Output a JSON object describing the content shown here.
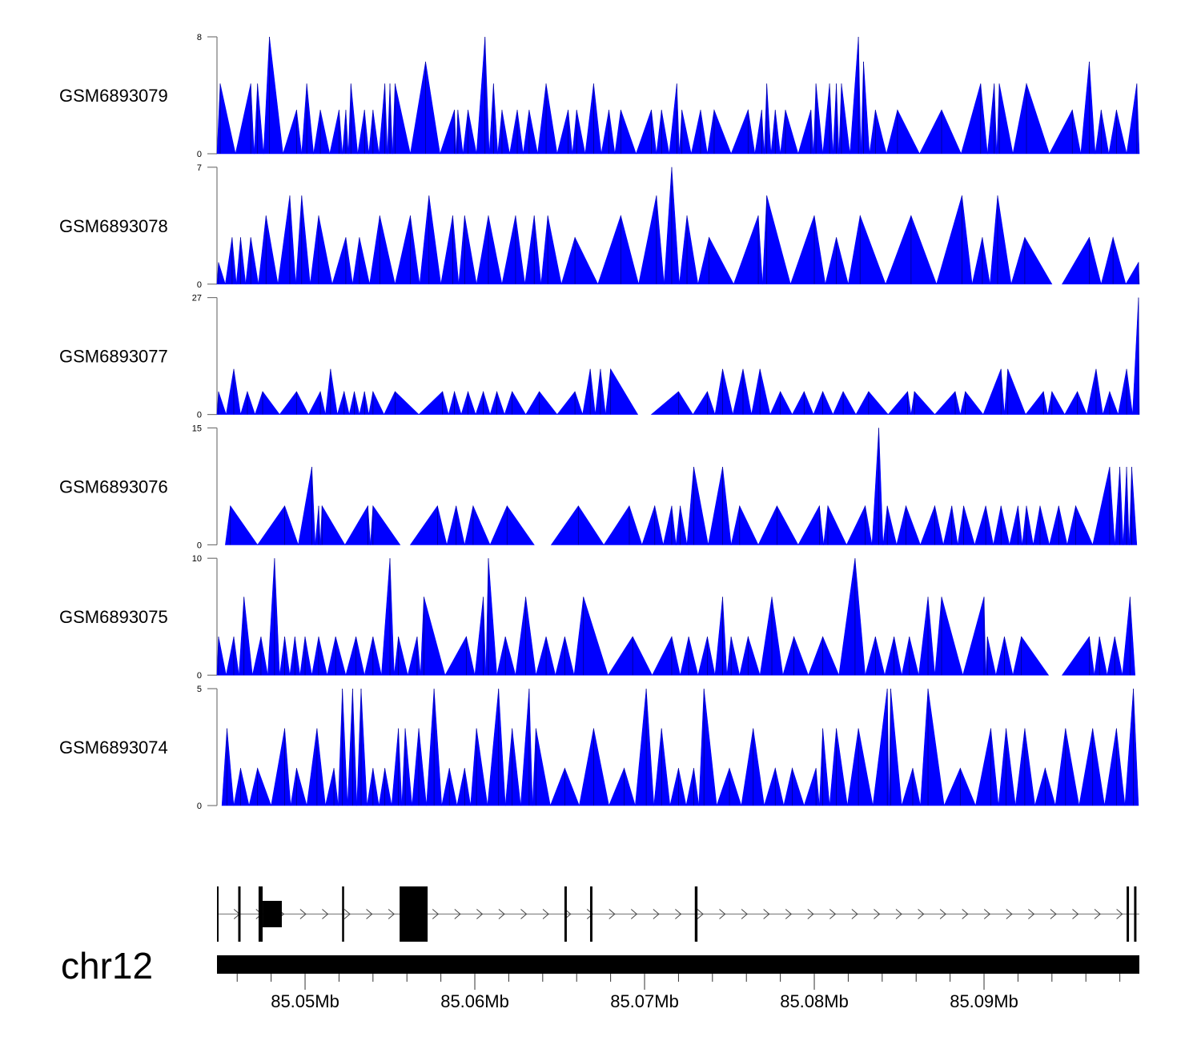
{
  "chart_data": {
    "type": "area",
    "x_unit": "kb offset from chr12:85,000,000",
    "xlim": [
      44.81,
      99.15
    ],
    "fill_color": "#0000FF",
    "tracks": [
      {
        "name": "GSM6893079",
        "ylim": [
          0,
          8
        ],
        "ymax_label": "8",
        "ymin_label": "0",
        "peaks": [
          [
            45.0,
            4.8
          ],
          [
            46.8,
            4.8
          ],
          [
            47.2,
            4.8
          ],
          [
            47.9,
            8
          ],
          [
            49.5,
            3
          ],
          [
            50.1,
            4.8
          ],
          [
            50.9,
            3
          ],
          [
            52.0,
            3
          ],
          [
            52.4,
            3
          ],
          [
            52.7,
            4.8
          ],
          [
            53.5,
            3
          ],
          [
            54.0,
            3
          ],
          [
            54.7,
            4.8
          ],
          [
            55.0,
            4.8
          ],
          [
            55.3,
            4.8
          ],
          [
            57.1,
            6.3
          ],
          [
            58.8,
            3
          ],
          [
            59.0,
            3
          ],
          [
            59.6,
            3
          ],
          [
            60.6,
            8
          ],
          [
            61.1,
            4.8
          ],
          [
            61.6,
            3
          ],
          [
            62.5,
            3
          ],
          [
            63.2,
            3
          ],
          [
            64.2,
            4.8
          ],
          [
            65.5,
            3
          ],
          [
            66.0,
            3
          ],
          [
            67.0,
            4.8
          ],
          [
            67.9,
            3
          ],
          [
            68.6,
            3
          ],
          [
            70.4,
            3
          ],
          [
            71.0,
            3
          ],
          [
            71.9,
            4.8
          ],
          [
            72.2,
            3
          ],
          [
            73.3,
            3
          ],
          [
            74.1,
            3
          ],
          [
            76.1,
            3
          ],
          [
            76.9,
            3
          ],
          [
            77.2,
            4.8
          ],
          [
            77.7,
            3
          ],
          [
            78.3,
            3
          ],
          [
            79.8,
            3
          ],
          [
            80.1,
            4.8
          ],
          [
            80.9,
            4.8
          ],
          [
            81.3,
            4.8
          ],
          [
            81.6,
            4.8
          ],
          [
            82.6,
            8
          ],
          [
            82.9,
            6.3
          ],
          [
            83.6,
            3
          ],
          [
            84.9,
            3
          ],
          [
            87.5,
            3
          ],
          [
            89.8,
            4.8
          ],
          [
            90.6,
            4.8
          ],
          [
            90.9,
            4.8
          ],
          [
            92.5,
            4.8
          ],
          [
            95.2,
            3
          ],
          [
            96.2,
            6.3
          ],
          [
            96.9,
            3
          ],
          [
            97.8,
            3
          ],
          [
            99.0,
            4.8
          ]
        ]
      },
      {
        "name": "GSM6893078",
        "ylim": [
          0,
          7
        ],
        "ymax_label": "7",
        "ymin_label": "0",
        "peaks": [
          [
            44.9,
            1.3
          ],
          [
            45.7,
            2.8
          ],
          [
            46.2,
            2.8
          ],
          [
            46.8,
            2.8
          ],
          [
            47.7,
            4.1
          ],
          [
            49.1,
            5.3
          ],
          [
            49.8,
            5.3
          ],
          [
            50.8,
            4.1
          ],
          [
            52.4,
            2.8
          ],
          [
            53.2,
            2.8
          ],
          [
            54.4,
            4.1
          ],
          [
            56.2,
            4.1
          ],
          [
            57.3,
            5.3
          ],
          [
            58.7,
            4.1
          ],
          [
            59.4,
            4.1
          ],
          [
            60.8,
            4.1
          ],
          [
            62.4,
            4.1
          ],
          [
            63.5,
            4.1
          ],
          [
            64.3,
            4.1
          ],
          [
            65.9,
            2.8
          ],
          [
            68.6,
            4.1
          ],
          [
            70.7,
            5.3
          ],
          [
            71.6,
            7
          ],
          [
            72.5,
            4.1
          ],
          [
            73.8,
            2.8
          ],
          [
            76.7,
            4.1
          ],
          [
            77.2,
            5.3
          ],
          [
            80.0,
            4.1
          ],
          [
            81.3,
            2.8
          ],
          [
            82.7,
            4.1
          ],
          [
            85.7,
            4.1
          ],
          [
            88.7,
            5.3
          ],
          [
            89.9,
            2.8
          ],
          [
            90.8,
            5.3
          ],
          [
            92.4,
            2.8
          ],
          [
            96.2,
            2.8
          ],
          [
            97.6,
            2.8
          ],
          [
            99.1,
            1.3
          ]
        ]
      },
      {
        "name": "GSM6893077",
        "ylim": [
          0,
          27
        ],
        "ymax_label": "27",
        "ymin_label": "0",
        "peaks": [
          [
            44.9,
            5.3
          ],
          [
            45.8,
            10.5
          ],
          [
            46.6,
            5.3
          ],
          [
            47.5,
            5.3
          ],
          [
            49.5,
            5.3
          ],
          [
            50.9,
            5.3
          ],
          [
            51.5,
            10.5
          ],
          [
            52.3,
            5.3
          ],
          [
            52.9,
            5.3
          ],
          [
            53.5,
            5.3
          ],
          [
            54.0,
            5.3
          ],
          [
            55.3,
            5.3
          ],
          [
            58.1,
            5.3
          ],
          [
            58.8,
            5.3
          ],
          [
            59.6,
            5.3
          ],
          [
            60.5,
            5.3
          ],
          [
            61.3,
            5.3
          ],
          [
            62.2,
            5.3
          ],
          [
            63.8,
            5.3
          ],
          [
            65.9,
            5.3
          ],
          [
            66.8,
            10.5
          ],
          [
            67.4,
            10.5
          ],
          [
            68.0,
            10.5
          ],
          [
            72.0,
            5.3
          ],
          [
            73.7,
            5.3
          ],
          [
            74.6,
            10.5
          ],
          [
            75.8,
            10.5
          ],
          [
            76.8,
            10.5
          ],
          [
            78.0,
            5.3
          ],
          [
            79.4,
            5.3
          ],
          [
            80.5,
            5.3
          ],
          [
            81.7,
            5.3
          ],
          [
            83.2,
            5.3
          ],
          [
            85.5,
            5.3
          ],
          [
            85.9,
            5.3
          ],
          [
            88.3,
            5.3
          ],
          [
            88.9,
            5.3
          ],
          [
            91.0,
            10.5
          ],
          [
            91.4,
            10.5
          ],
          [
            93.5,
            5.3
          ],
          [
            94.0,
            5.3
          ],
          [
            95.5,
            5.3
          ],
          [
            96.6,
            10.5
          ],
          [
            97.4,
            5.3
          ],
          [
            98.4,
            10.5
          ],
          [
            99.1,
            27
          ]
        ]
      },
      {
        "name": "GSM6893076",
        "ylim": [
          0,
          15
        ],
        "ymax_label": "15",
        "ymin_label": "0",
        "peaks": [
          [
            45.6,
            5
          ],
          [
            48.8,
            5
          ],
          [
            50.4,
            10
          ],
          [
            50.8,
            5
          ],
          [
            51.0,
            5
          ],
          [
            53.7,
            5
          ],
          [
            54.0,
            5
          ],
          [
            57.8,
            5
          ],
          [
            58.9,
            5
          ],
          [
            59.9,
            5
          ],
          [
            61.9,
            5
          ],
          [
            66.1,
            5
          ],
          [
            69.1,
            5
          ],
          [
            70.6,
            5
          ],
          [
            71.6,
            5
          ],
          [
            72.1,
            5
          ],
          [
            72.9,
            10
          ],
          [
            74.6,
            10
          ],
          [
            75.6,
            5
          ],
          [
            77.8,
            5
          ],
          [
            80.3,
            5
          ],
          [
            80.8,
            5
          ],
          [
            83.0,
            5
          ],
          [
            83.8,
            15
          ],
          [
            84.3,
            5
          ],
          [
            85.4,
            5
          ],
          [
            87.1,
            5
          ],
          [
            88.1,
            5
          ],
          [
            88.8,
            5
          ],
          [
            90.1,
            5
          ],
          [
            91.0,
            5
          ],
          [
            92.0,
            5
          ],
          [
            92.5,
            5
          ],
          [
            93.3,
            5
          ],
          [
            94.4,
            5
          ],
          [
            95.4,
            5
          ],
          [
            97.4,
            10
          ],
          [
            98.0,
            10
          ],
          [
            98.4,
            10
          ],
          [
            98.7,
            10
          ]
        ]
      },
      {
        "name": "GSM6893075",
        "ylim": [
          0,
          10
        ],
        "ymax_label": "10",
        "ymin_label": "0",
        "peaks": [
          [
            44.9,
            3.3
          ],
          [
            45.8,
            3.3
          ],
          [
            46.4,
            6.7
          ],
          [
            47.4,
            3.3
          ],
          [
            48.2,
            10
          ],
          [
            48.8,
            3.3
          ],
          [
            49.4,
            3.3
          ],
          [
            50.0,
            3.3
          ],
          [
            50.8,
            3.3
          ],
          [
            51.8,
            3.3
          ],
          [
            53.0,
            3.3
          ],
          [
            54.0,
            3.3
          ],
          [
            55.0,
            10
          ],
          [
            55.5,
            3.3
          ],
          [
            56.6,
            3.3
          ],
          [
            57.0,
            6.7
          ],
          [
            59.5,
            3.3
          ],
          [
            60.5,
            6.7
          ],
          [
            60.8,
            10
          ],
          [
            61.8,
            3.3
          ],
          [
            63.0,
            6.7
          ],
          [
            64.2,
            3.3
          ],
          [
            65.3,
            3.3
          ],
          [
            66.4,
            6.7
          ],
          [
            69.3,
            3.3
          ],
          [
            71.6,
            3.3
          ],
          [
            72.6,
            3.3
          ],
          [
            73.7,
            3.3
          ],
          [
            74.6,
            6.7
          ],
          [
            75.1,
            3.3
          ],
          [
            76.1,
            3.3
          ],
          [
            77.5,
            6.7
          ],
          [
            78.8,
            3.3
          ],
          [
            80.5,
            3.3
          ],
          [
            82.4,
            10
          ],
          [
            83.6,
            3.3
          ],
          [
            84.7,
            3.3
          ],
          [
            85.6,
            3.3
          ],
          [
            86.7,
            6.7
          ],
          [
            87.5,
            6.7
          ],
          [
            90.0,
            6.7
          ],
          [
            90.2,
            3.3
          ],
          [
            91.2,
            3.3
          ],
          [
            92.2,
            3.3
          ],
          [
            96.2,
            3.3
          ],
          [
            96.8,
            3.3
          ],
          [
            97.7,
            3.3
          ],
          [
            98.6,
            6.7
          ]
        ]
      },
      {
        "name": "GSM6893074",
        "ylim": [
          0,
          5
        ],
        "ymax_label": "5",
        "ymin_label": "0",
        "peaks": [
          [
            45.4,
            3.3
          ],
          [
            46.2,
            1.6
          ],
          [
            47.2,
            1.6
          ],
          [
            48.8,
            3.3
          ],
          [
            49.5,
            1.6
          ],
          [
            50.7,
            3.3
          ],
          [
            51.7,
            1.6
          ],
          [
            52.2,
            5
          ],
          [
            52.8,
            5
          ],
          [
            53.3,
            5
          ],
          [
            54.0,
            1.6
          ],
          [
            54.7,
            1.6
          ],
          [
            55.5,
            3.3
          ],
          [
            55.9,
            3.3
          ],
          [
            56.7,
            3.3
          ],
          [
            57.6,
            5
          ],
          [
            58.5,
            1.6
          ],
          [
            59.4,
            1.6
          ],
          [
            60.1,
            3.3
          ],
          [
            61.4,
            5
          ],
          [
            62.2,
            3.3
          ],
          [
            63.2,
            5
          ],
          [
            63.6,
            3.3
          ],
          [
            65.3,
            1.6
          ],
          [
            67.0,
            3.3
          ],
          [
            68.8,
            1.6
          ],
          [
            70.1,
            5
          ],
          [
            71.0,
            3.3
          ],
          [
            72.0,
            1.6
          ],
          [
            72.9,
            1.6
          ],
          [
            73.5,
            5
          ],
          [
            75.0,
            1.6
          ],
          [
            76.4,
            3.3
          ],
          [
            77.7,
            1.6
          ],
          [
            78.7,
            1.6
          ],
          [
            80.1,
            1.6
          ],
          [
            80.5,
            3.3
          ],
          [
            81.3,
            3.3
          ],
          [
            82.6,
            3.3
          ],
          [
            84.3,
            5
          ],
          [
            84.5,
            5
          ],
          [
            85.8,
            1.6
          ],
          [
            86.7,
            5
          ],
          [
            88.6,
            1.6
          ],
          [
            90.4,
            3.3
          ],
          [
            91.3,
            3.3
          ],
          [
            92.4,
            3.3
          ],
          [
            93.6,
            1.6
          ],
          [
            94.8,
            3.3
          ],
          [
            96.4,
            3.3
          ],
          [
            97.8,
            3.3
          ],
          [
            98.8,
            5
          ]
        ]
      }
    ],
    "gene_model": {
      "exons": [
        [
          44.81,
          44.86,
          "full"
        ],
        [
          46.06,
          46.2,
          "full"
        ],
        [
          47.26,
          47.5,
          "full"
        ],
        [
          47.5,
          48.63,
          "half"
        ],
        [
          52.18,
          52.3,
          "full"
        ],
        [
          55.57,
          57.22,
          "full"
        ],
        [
          65.28,
          65.42,
          "full"
        ],
        [
          66.79,
          66.93,
          "full"
        ],
        [
          72.96,
          73.12,
          "full"
        ],
        [
          98.4,
          98.54,
          "full"
        ],
        [
          98.84,
          98.98,
          "full"
        ]
      ],
      "strand": "+"
    },
    "axis": {
      "chromosome": "chr12",
      "minor_tick_step_kb": 2,
      "tick_labels": [
        {
          "pos": 50,
          "label": "85.05Mb"
        },
        {
          "pos": 60,
          "label": "85.06Mb"
        },
        {
          "pos": 70,
          "label": "85.07Mb"
        },
        {
          "pos": 80,
          "label": "85.08Mb"
        },
        {
          "pos": 90,
          "label": "85.09Mb"
        }
      ]
    }
  }
}
